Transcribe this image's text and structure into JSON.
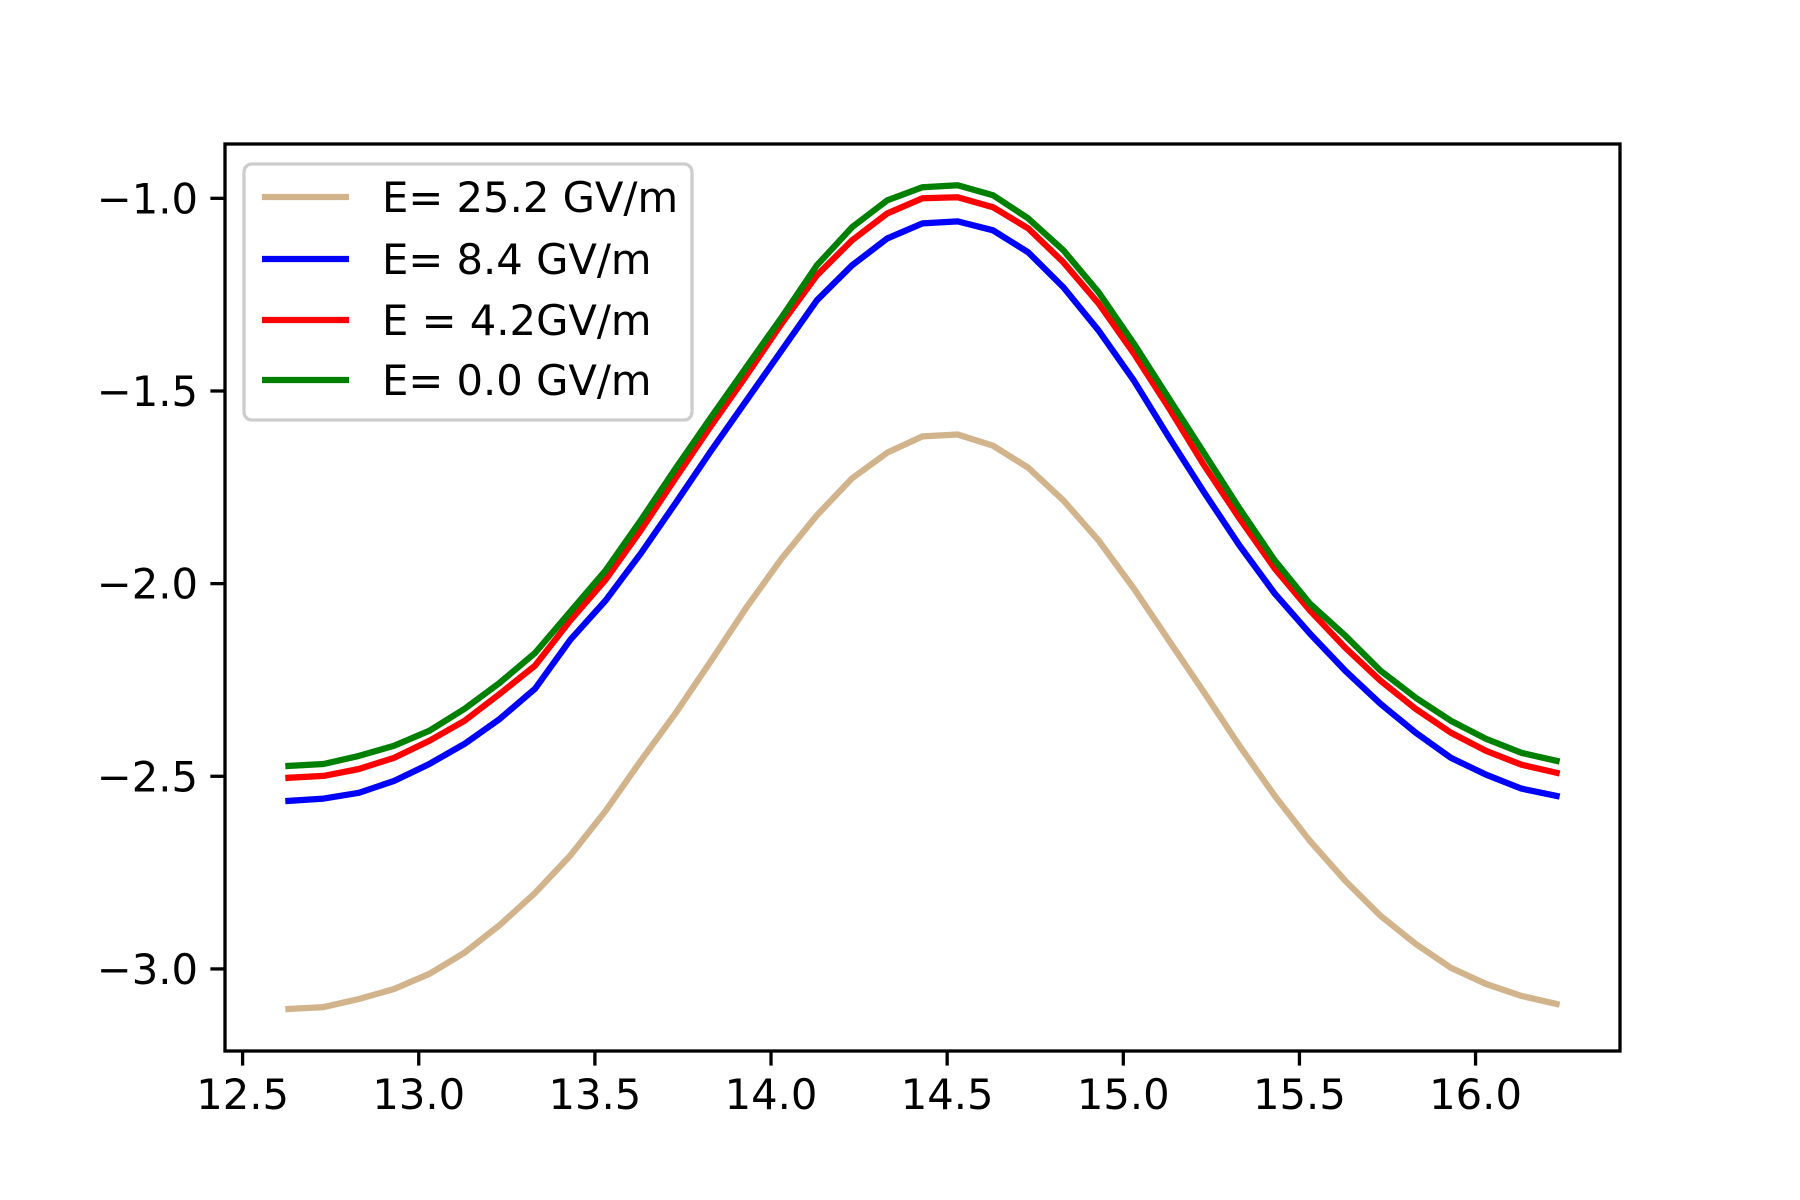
{
  "chart_data": {
    "type": "line",
    "title": "",
    "xlabel": "",
    "ylabel": "",
    "xlim": [
      12.45,
      16.41
    ],
    "ylim": [
      -3.213,
      -0.859
    ],
    "grid": false,
    "legend_position": "top-left",
    "xticks": [
      12.5,
      13.0,
      13.5,
      14.0,
      14.5,
      15.0,
      15.5,
      16.0
    ],
    "xtick_labels": [
      "12.5",
      "13.0",
      "13.5",
      "14.0",
      "14.5",
      "15.0",
      "15.5",
      "16.0"
    ],
    "yticks": [
      -3.0,
      -2.5,
      -2.0,
      -1.5,
      -1.0
    ],
    "ytick_labels": [
      "−3.0",
      "−2.5",
      "−2.0",
      "−1.5",
      "−1.0"
    ],
    "x": [
      12.63,
      12.73,
      12.83,
      12.93,
      13.03,
      13.13,
      13.23,
      13.33,
      13.43,
      13.53,
      13.63,
      13.73,
      13.83,
      13.93,
      14.03,
      14.13,
      14.23,
      14.33,
      14.43,
      14.53,
      14.63,
      14.73,
      14.83,
      14.93,
      15.03,
      15.13,
      15.23,
      15.33,
      15.43,
      15.53,
      15.63,
      15.73,
      15.83,
      15.93,
      16.03,
      16.13,
      16.23
    ],
    "series": [
      {
        "name": "E= 25.2 GV/m",
        "color": "#d2b48c",
        "values": [
          -3.104,
          -3.099,
          -3.078,
          -3.052,
          -3.013,
          -2.958,
          -2.886,
          -2.803,
          -2.706,
          -2.59,
          -2.46,
          -2.335,
          -2.2,
          -2.062,
          -1.935,
          -1.823,
          -1.727,
          -1.66,
          -1.618,
          -1.613,
          -1.642,
          -1.699,
          -1.784,
          -1.888,
          -2.013,
          -2.148,
          -2.283,
          -2.421,
          -2.551,
          -2.668,
          -2.771,
          -2.862,
          -2.935,
          -2.997,
          -3.039,
          -3.07,
          -3.091
        ]
      },
      {
        "name": "E= 8.4 GV/m",
        "color": "#0000ff",
        "values": [
          -2.564,
          -2.558,
          -2.543,
          -2.512,
          -2.468,
          -2.416,
          -2.351,
          -2.273,
          -2.146,
          -2.044,
          -1.922,
          -1.79,
          -1.655,
          -1.525,
          -1.395,
          -1.265,
          -1.174,
          -1.104,
          -1.065,
          -1.06,
          -1.083,
          -1.14,
          -1.231,
          -1.343,
          -1.473,
          -1.621,
          -1.764,
          -1.901,
          -2.026,
          -2.13,
          -2.226,
          -2.312,
          -2.387,
          -2.452,
          -2.496,
          -2.532,
          -2.551
        ]
      },
      {
        "name": "E = 4.2GV/m",
        "color": "#ff0000",
        "values": [
          -2.504,
          -2.499,
          -2.481,
          -2.452,
          -2.408,
          -2.356,
          -2.286,
          -2.213,
          -2.096,
          -1.99,
          -1.862,
          -1.725,
          -1.59,
          -1.46,
          -1.325,
          -1.2,
          -1.109,
          -1.039,
          -1.0,
          -0.997,
          -1.023,
          -1.078,
          -1.166,
          -1.273,
          -1.403,
          -1.545,
          -1.694,
          -1.831,
          -1.961,
          -2.07,
          -2.166,
          -2.252,
          -2.325,
          -2.387,
          -2.434,
          -2.47,
          -2.491
        ]
      },
      {
        "name": "E= 0.0 GV/m",
        "color": "#008000",
        "values": [
          -2.473,
          -2.468,
          -2.447,
          -2.421,
          -2.382,
          -2.325,
          -2.257,
          -2.18,
          -2.073,
          -1.966,
          -1.836,
          -1.7,
          -1.568,
          -1.438,
          -1.309,
          -1.174,
          -1.075,
          -1.005,
          -0.971,
          -0.966,
          -0.992,
          -1.052,
          -1.135,
          -1.244,
          -1.377,
          -1.52,
          -1.662,
          -1.805,
          -1.94,
          -2.052,
          -2.135,
          -2.226,
          -2.296,
          -2.356,
          -2.403,
          -2.439,
          -2.46
        ]
      }
    ]
  }
}
